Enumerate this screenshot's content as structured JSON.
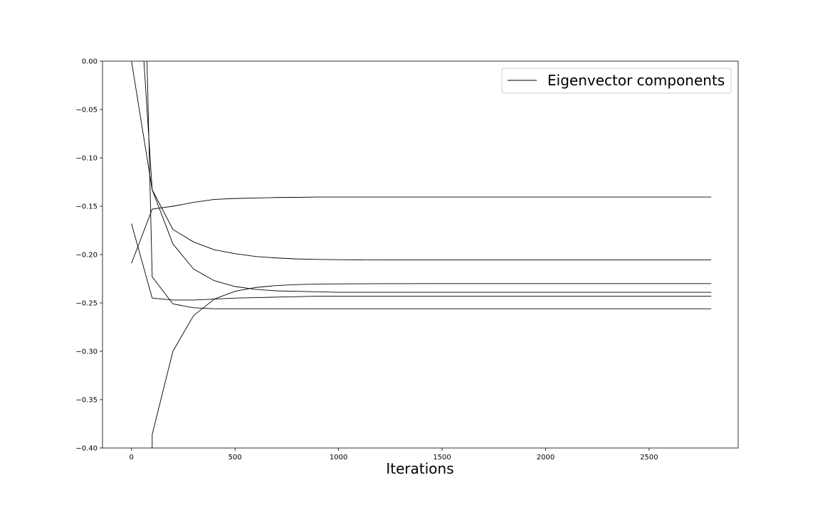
{
  "chart_data": {
    "type": "line",
    "title": "",
    "xlabel": "Iterations",
    "ylabel": "",
    "xlim": [
      -140,
      2930
    ],
    "ylim": [
      -0.4,
      0.0
    ],
    "xticks": [
      0,
      500,
      1000,
      1500,
      2000,
      2500
    ],
    "xtick_labels": [
      "0",
      "500",
      "1000",
      "1500",
      "2000",
      "2500"
    ],
    "yticks": [
      0.0,
      -0.05,
      -0.1,
      -0.15,
      -0.2,
      -0.25,
      -0.3,
      -0.35,
      -0.4
    ],
    "ytick_labels": [
      "0.00",
      "−0.05",
      "−0.10",
      "−0.15",
      "−0.20",
      "−0.25",
      "−0.30",
      "−0.35",
      "−0.40"
    ],
    "grid": false,
    "legend": {
      "position": "top-right",
      "entries": [
        "Eigenvector components"
      ]
    },
    "line_color": "#000000",
    "series": [
      {
        "x": [
          0,
          100,
          200,
          300,
          400,
          500,
          600,
          700,
          800,
          900,
          1000,
          1200,
          1500,
          2000,
          2500,
          2800
        ],
        "values": [
          -0.209,
          -0.153,
          -0.15,
          -0.146,
          -0.143,
          -0.142,
          -0.1415,
          -0.141,
          -0.1408,
          -0.1405,
          -0.1405,
          -0.1405,
          -0.1405,
          -0.1405,
          -0.1405,
          -0.1405
        ]
      },
      {
        "x": [
          0,
          100,
          200,
          300,
          400,
          500,
          600,
          700,
          800,
          900,
          1000,
          1200,
          1500,
          2000,
          2500,
          2800
        ],
        "values": [
          0.0,
          -0.133,
          -0.174,
          -0.187,
          -0.195,
          -0.199,
          -0.202,
          -0.2035,
          -0.2045,
          -0.205,
          -0.2053,
          -0.2055,
          -0.2055,
          -0.2055,
          -0.2055,
          -0.2055
        ]
      },
      {
        "x": [
          60,
          100,
          200,
          300,
          400,
          500,
          600,
          700,
          800,
          900,
          1000,
          1200,
          1500,
          2000,
          2500,
          2800
        ],
        "values": [
          0.0,
          -0.133,
          -0.189,
          -0.215,
          -0.227,
          -0.233,
          -0.236,
          -0.2375,
          -0.238,
          -0.2385,
          -0.239,
          -0.239,
          -0.239,
          -0.239,
          -0.239,
          -0.239
        ]
      },
      {
        "x": [
          75,
          100,
          200,
          300,
          400,
          500,
          600,
          700,
          800,
          900,
          1000,
          1200,
          1500,
          2000,
          2500,
          2800
        ],
        "values": [
          0.0,
          -0.223,
          -0.251,
          -0.255,
          -0.256,
          -0.256,
          -0.256,
          -0.256,
          -0.256,
          -0.256,
          -0.256,
          -0.256,
          -0.256,
          -0.256,
          -0.256,
          -0.256
        ]
      },
      {
        "x": [
          0,
          100,
          200,
          300,
          400,
          500,
          600,
          700,
          800,
          900,
          1000,
          1200,
          1500,
          2000,
          2500,
          2800
        ],
        "values": [
          -0.168,
          -0.245,
          -0.247,
          -0.247,
          -0.246,
          -0.245,
          -0.2445,
          -0.244,
          -0.2435,
          -0.243,
          -0.243,
          -0.243,
          -0.243,
          -0.243,
          -0.243,
          -0.243
        ]
      },
      {
        "x": [
          100,
          100,
          200,
          300,
          400,
          500,
          600,
          700,
          800,
          900,
          1000,
          1200,
          1500,
          2000,
          2500,
          2800
        ],
        "values": [
          -0.4,
          -0.386,
          -0.3,
          -0.263,
          -0.246,
          -0.238,
          -0.234,
          -0.232,
          -0.231,
          -0.2305,
          -0.2303,
          -0.2301,
          -0.23,
          -0.23,
          -0.23,
          -0.23
        ]
      }
    ]
  }
}
